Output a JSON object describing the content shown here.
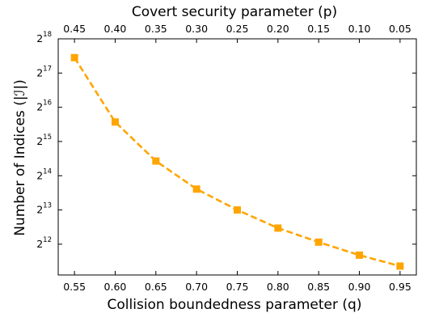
{
  "chart_data": {
    "type": "line",
    "xlabel": "Collision boundedness parameter (q)",
    "x2label": "Covert security parameter (p)",
    "ylabel": "Number of Indices (|ℐ|)",
    "x": [
      0.55,
      0.6,
      0.65,
      0.7,
      0.75,
      0.8,
      0.85,
      0.9,
      0.95
    ],
    "x_ticks": [
      "0.55",
      "0.60",
      "0.65",
      "0.70",
      "0.75",
      "0.80",
      "0.85",
      "0.90",
      "0.95"
    ],
    "x2_ticks": [
      "0.45",
      "0.40",
      "0.35",
      "0.30",
      "0.25",
      "0.20",
      "0.15",
      "0.10",
      "0.05"
    ],
    "y_scale": "log2",
    "y_ticks": [
      {
        "base": "2",
        "exp": "12"
      },
      {
        "base": "2",
        "exp": "13"
      },
      {
        "base": "2",
        "exp": "14"
      },
      {
        "base": "2",
        "exp": "15"
      },
      {
        "base": "2",
        "exp": "16"
      },
      {
        "base": "2",
        "exp": "17"
      },
      {
        "base": "2",
        "exp": "18"
      }
    ],
    "ylim_log2": [
      11.1,
      18
    ],
    "xlim": [
      0.53,
      0.97
    ],
    "series": [
      {
        "log2_values": [
          17.45,
          15.57,
          14.43,
          13.61,
          13.0,
          12.47,
          12.06,
          11.68,
          11.36
        ],
        "color": "#FFA500",
        "line_style": "dashed",
        "marker": "square"
      }
    ],
    "grid": false,
    "legend": "none"
  }
}
